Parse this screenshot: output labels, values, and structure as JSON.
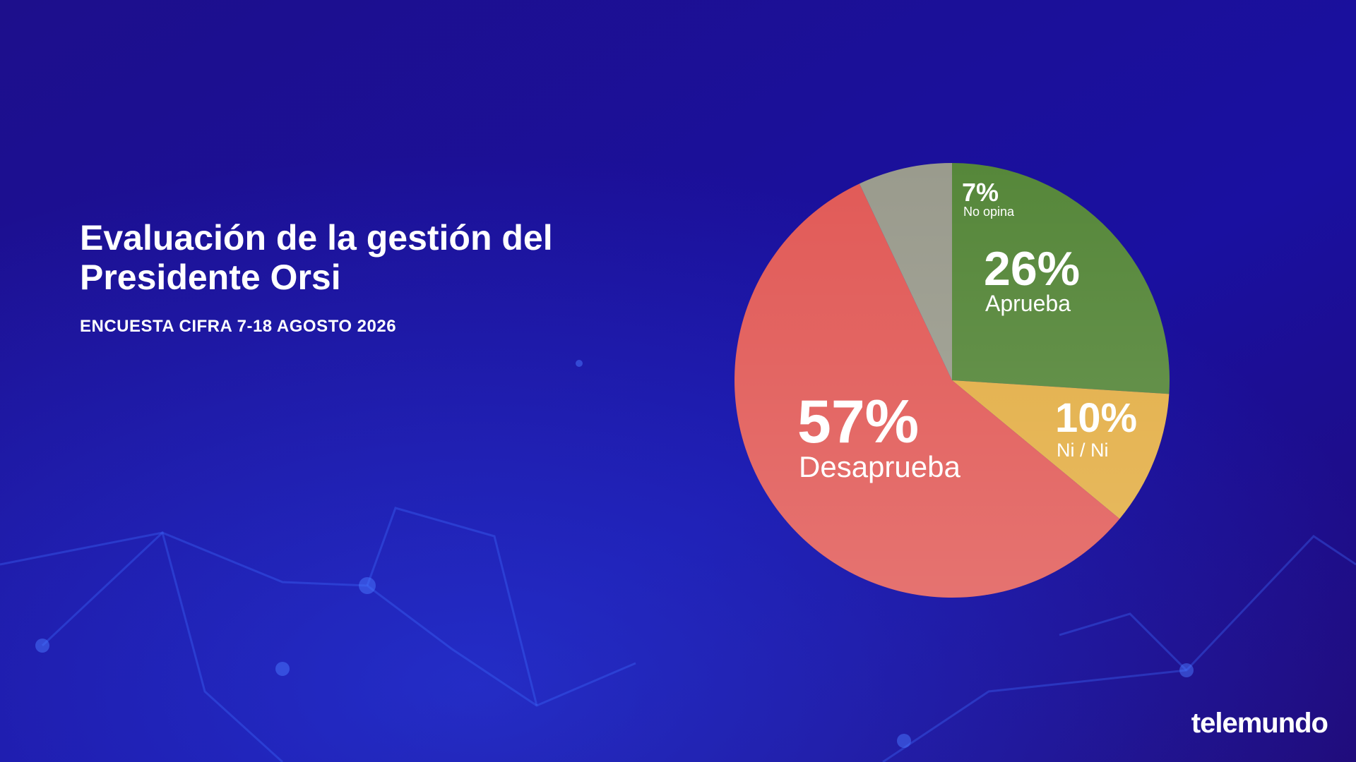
{
  "chart_data": {
    "type": "pie",
    "title": "Evaluación de la gestión del Presidente Orsi",
    "subtitle": "ENCUESTA CIFRA 7-18 AGOSTO 2026",
    "categories": [
      "Aprueba",
      "Ni / Ni",
      "Desaprueba",
      "No opina"
    ],
    "values": [
      26,
      10,
      57,
      7
    ],
    "value_labels": [
      "26%",
      "10%",
      "57%",
      "7%"
    ],
    "colors": [
      "#56873a",
      "#e3ae45",
      "#e15a57",
      "#9a9b8d"
    ]
  },
  "brand": "telemundo"
}
